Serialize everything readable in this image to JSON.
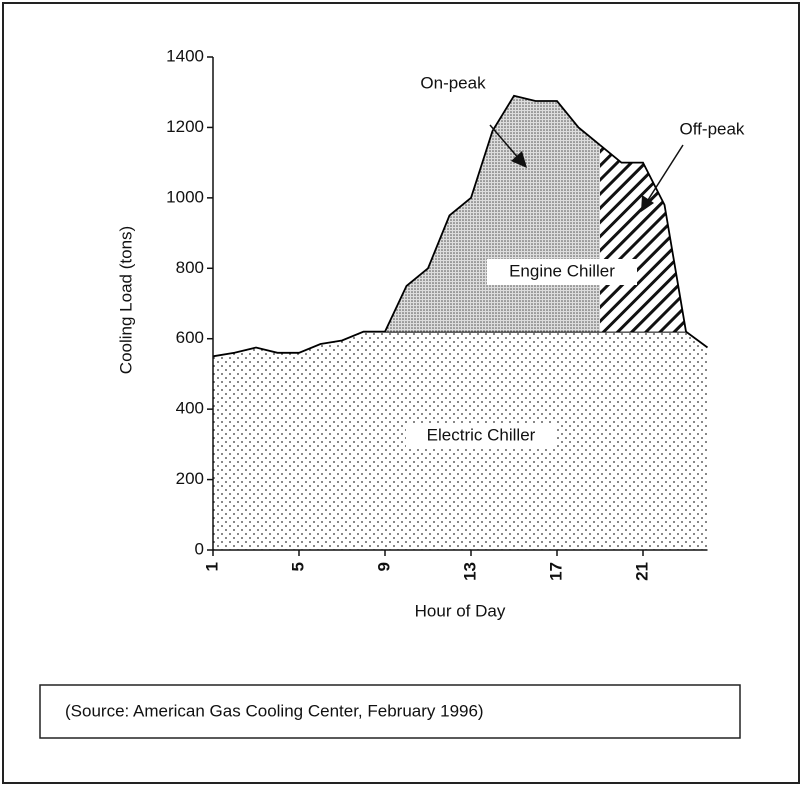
{
  "chart_data": {
    "type": "area",
    "ylabel": "Cooling Load (tons)",
    "xlabel": "Hour of Day",
    "x": [
      1,
      2,
      3,
      4,
      5,
      6,
      7,
      8,
      9,
      10,
      11,
      12,
      13,
      14,
      15,
      16,
      17,
      18,
      19,
      20,
      21,
      22,
      23,
      24
    ],
    "series": [
      {
        "name": "Electric Chiller",
        "color": "#000000",
        "values": [
          550,
          560,
          575,
          560,
          560,
          585,
          595,
          620,
          620,
          620,
          620,
          620,
          620,
          620,
          620,
          620,
          620,
          620,
          620,
          620,
          620,
          620,
          620,
          575
        ]
      },
      {
        "name": "On-peak",
        "color": "#000000",
        "values": [
          null,
          null,
          null,
          null,
          null,
          null,
          null,
          null,
          0,
          130,
          180,
          330,
          380,
          570,
          670,
          655,
          655,
          580,
          530,
          null,
          null,
          null,
          null,
          null
        ]
      },
      {
        "name": "Off-peak",
        "color": "#000000",
        "values": [
          null,
          null,
          null,
          null,
          null,
          null,
          null,
          null,
          null,
          null,
          null,
          null,
          null,
          null,
          null,
          null,
          null,
          null,
          530,
          480,
          480,
          360,
          0,
          null
        ]
      }
    ],
    "annotation": "Engine Chiller",
    "source": "(Source:  American Gas Cooling Center, February 1996)",
    "xlim": [
      1,
      24
    ],
    "xticks": [
      1,
      5,
      9,
      13,
      17,
      21
    ],
    "ylim": [
      0,
      1400
    ],
    "yticks": [
      0,
      200,
      400,
      600,
      800,
      1000,
      1200,
      1400
    ],
    "grid": false
  }
}
